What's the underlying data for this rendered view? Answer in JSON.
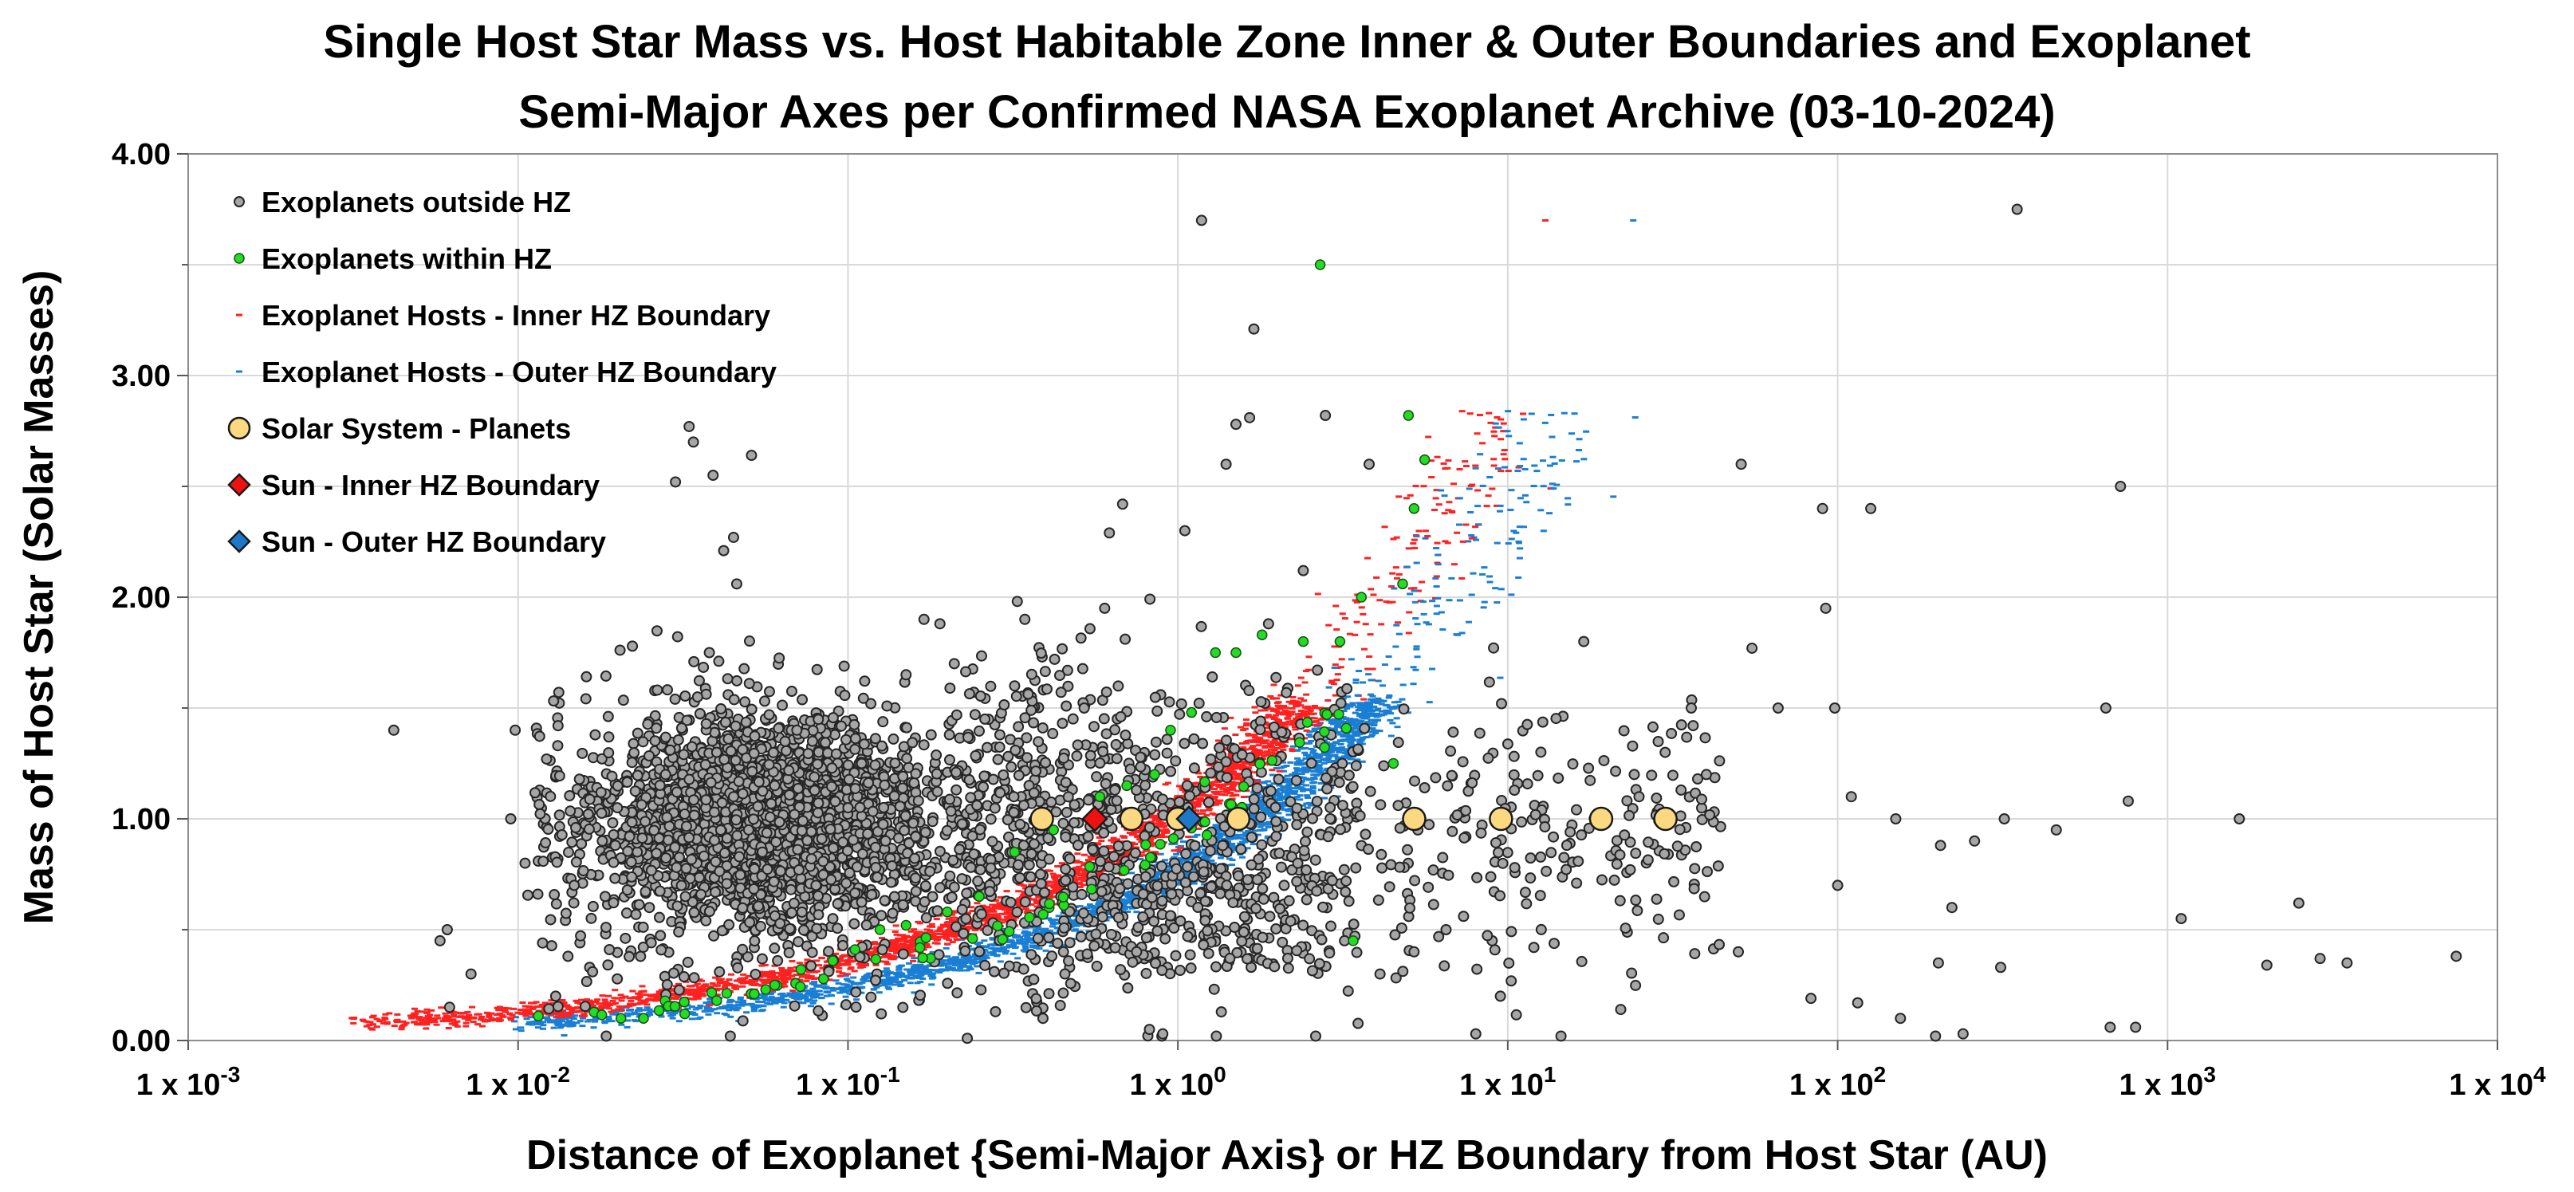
{
  "chart_data": {
    "type": "scatter",
    "title_line1": "Single Host Star Mass vs. Host Habitable Zone Inner & Outer Boundaries and Exoplanet",
    "title_line2": "Semi-Major Axes per Confirmed NASA Exoplanet Archive (03-10-2024)",
    "xlabel": "Distance of Exoplanet {Semi-Major Axis} or HZ Boundary from Host Star (AU)",
    "ylabel": "Mass of Host Star (Solar Masses)",
    "x_scale": "log",
    "xlim": [
      0.001,
      10000
    ],
    "ylim": [
      0,
      4
    ],
    "x_ticks": [
      {
        "value": 0.001,
        "base": "1 x 10",
        "exp": "-3"
      },
      {
        "value": 0.01,
        "base": "1 x 10",
        "exp": "-2"
      },
      {
        "value": 0.1,
        "base": "1 x 10",
        "exp": "-1"
      },
      {
        "value": 1,
        "base": "1 x 10",
        "exp": "0"
      },
      {
        "value": 10,
        "base": "1 x 10",
        "exp": "1"
      },
      {
        "value": 100,
        "base": "1 x 10",
        "exp": "2"
      },
      {
        "value": 1000,
        "base": "1 x 10",
        "exp": "3"
      },
      {
        "value": 10000,
        "base": "1 x 10",
        "exp": "4"
      }
    ],
    "y_ticks": [
      {
        "value": 0,
        "label": "0.00"
      },
      {
        "value": 1,
        "label": "1.00"
      },
      {
        "value": 2,
        "label": "2.00"
      },
      {
        "value": 3,
        "label": "3.00"
      },
      {
        "value": 4,
        "label": "4.00"
      }
    ],
    "legend_position": "top-left",
    "colors": {
      "outside_fill": "#a6a6a6",
      "outside_stroke": "#262626",
      "within_fill": "#22dd22",
      "inner_hz": "#ff2020",
      "outer_hz": "#1a7fd4",
      "solar_fill": "#fcd980",
      "sun_inner": "#ee1111",
      "sun_outer": "#1e78c8",
      "grid": "#d9d9d9"
    },
    "legend": [
      {
        "key": "outside",
        "label": "Exoplanets outside HZ"
      },
      {
        "key": "within",
        "label": "Exoplanets within HZ"
      },
      {
        "key": "inner",
        "label": "Exoplanet Hosts - Inner HZ Boundary"
      },
      {
        "key": "outer",
        "label": "Exoplanet Hosts - Outer HZ Boundary"
      },
      {
        "key": "solar",
        "label": "Solar System - Planets"
      },
      {
        "key": "sun_inner",
        "label": "Sun - Inner HZ Boundary"
      },
      {
        "key": "sun_outer",
        "label": "Sun - Outer HZ Boundary"
      }
    ],
    "series": [
      {
        "name": "Solar System - Planets",
        "key": "solar",
        "points": [
          [
            0.387,
            1.0
          ],
          [
            0.723,
            1.0
          ],
          [
            1.0,
            1.0
          ],
          [
            1.524,
            1.0
          ],
          [
            5.203,
            1.0
          ],
          [
            9.537,
            1.0
          ],
          [
            19.19,
            1.0
          ],
          [
            30.07,
            1.0
          ]
        ]
      },
      {
        "name": "Sun - Inner HZ Boundary",
        "key": "sun_inner",
        "points": [
          [
            0.56,
            1.0
          ]
        ]
      },
      {
        "name": "Sun - Outer HZ Boundary",
        "key": "sun_outer",
        "points": [
          [
            1.08,
            1.0
          ]
        ]
      },
      {
        "name": "Exoplanets outside HZ (representative)",
        "key": "outside",
        "points": [
          [
            0.0042,
            1.4
          ],
          [
            0.0098,
            1.4
          ],
          [
            0.0061,
            0.5
          ],
          [
            0.0058,
            0.45
          ],
          [
            0.0062,
            0.15
          ],
          [
            0.0072,
            0.3
          ],
          [
            0.0095,
            1.0
          ],
          [
            0.0105,
            0.8
          ],
          [
            0.0122,
            1.27
          ],
          [
            0.013,
            0.2
          ],
          [
            0.0148,
            0.7
          ],
          [
            0.018,
            0.9
          ],
          [
            0.02,
            1.05
          ],
          [
            0.025,
            0.6
          ],
          [
            0.028,
            1.2
          ],
          [
            0.03,
            2.52
          ],
          [
            0.033,
            2.77
          ],
          [
            0.034,
            2.7
          ],
          [
            0.039,
            2.55
          ],
          [
            0.045,
            2.27
          ],
          [
            0.042,
            2.21
          ],
          [
            0.051,
            2.64
          ],
          [
            0.046,
            2.06
          ],
          [
            0.038,
            1.75
          ],
          [
            0.035,
            1.55
          ],
          [
            0.04,
            1.3
          ],
          [
            0.045,
            1.1
          ],
          [
            0.05,
            0.95
          ],
          [
            0.055,
            0.85
          ],
          [
            0.06,
            1.15
          ],
          [
            0.07,
            1.4
          ],
          [
            0.08,
            0.7
          ],
          [
            0.09,
            0.55
          ],
          [
            0.1,
            1.05
          ],
          [
            0.11,
            1.25
          ],
          [
            0.13,
            0.9
          ],
          [
            0.15,
            1.65
          ],
          [
            0.17,
            1.9
          ],
          [
            0.19,
            1.88
          ],
          [
            0.21,
            1.7
          ],
          [
            0.23,
            0.01
          ],
          [
            0.26,
            1.45
          ],
          [
            0.28,
            0.13
          ],
          [
            0.32,
            1.6
          ],
          [
            0.39,
            0.1
          ],
          [
            0.45,
            0.4
          ],
          [
            0.52,
            1.5
          ],
          [
            0.6,
            1.95
          ],
          [
            0.62,
            2.29
          ],
          [
            0.68,
            2.42
          ],
          [
            0.75,
            0.4
          ],
          [
            0.82,
            0.05
          ],
          [
            0.9,
            0.03
          ],
          [
            1.05,
            2.3
          ],
          [
            1.18,
            3.7
          ],
          [
            1.4,
            2.6
          ],
          [
            1.65,
            2.81
          ],
          [
            1.7,
            3.21
          ],
          [
            1.5,
            2.78
          ],
          [
            1.9,
            0.56
          ],
          [
            2.1,
            0.7
          ],
          [
            2.4,
            2.12
          ],
          [
            2.8,
            2.82
          ],
          [
            3.2,
            0.45
          ],
          [
            3.8,
            2.6
          ],
          [
            4.1,
            0.3
          ],
          [
            5.2,
            0.4
          ],
          [
            6.5,
            0.5
          ],
          [
            8.0,
            0.03
          ],
          [
            9.5,
            0.2
          ],
          [
            10.5,
            0.78
          ],
          [
            12.0,
            0.42
          ],
          [
            14.5,
            0.02
          ],
          [
            17.0,
            1.8
          ],
          [
            22.0,
            0.14
          ],
          [
            25.0,
            1.1
          ],
          [
            30.0,
            1.3
          ],
          [
            36.0,
            1.5
          ],
          [
            40.0,
            1.2
          ],
          [
            51.0,
            2.6
          ],
          [
            50.0,
            0.4
          ],
          [
            55.0,
            1.77
          ],
          [
            66.0,
            1.5
          ],
          [
            83.0,
            0.19
          ],
          [
            90.0,
            2.4
          ],
          [
            92.0,
            1.95
          ],
          [
            98.0,
            1.5
          ],
          [
            100.0,
            0.7
          ],
          [
            110.0,
            1.1
          ],
          [
            115.0,
            0.17
          ],
          [
            126.0,
            2.4
          ],
          [
            150.0,
            1.0
          ],
          [
            155.0,
            0.1
          ],
          [
            198.0,
            0.02
          ],
          [
            202.0,
            0.35
          ],
          [
            205.0,
            0.88
          ],
          [
            222.0,
            0.6
          ],
          [
            240.0,
            0.03
          ],
          [
            260.0,
            0.9
          ],
          [
            312.0,
            0.33
          ],
          [
            320.0,
            1.0
          ],
          [
            350.0,
            3.75
          ],
          [
            460.0,
            0.95
          ],
          [
            650.0,
            1.5
          ],
          [
            670.0,
            0.06
          ],
          [
            720.0,
            2.5
          ],
          [
            760.0,
            1.08
          ],
          [
            800.0,
            0.06
          ],
          [
            1100.0,
            0.55
          ],
          [
            1650.0,
            1.0
          ],
          [
            2000.0,
            0.34
          ],
          [
            2500.0,
            0.62
          ],
          [
            2900.0,
            0.37
          ],
          [
            3500.0,
            0.35
          ],
          [
            7500.0,
            0.38
          ]
        ]
      },
      {
        "name": "Exoplanets within HZ (representative)",
        "key": "within",
        "points": [
          [
            0.0205,
            0.1
          ],
          [
            0.024,
            0.1
          ],
          [
            0.032,
            0.12
          ],
          [
            0.04,
            0.18
          ],
          [
            0.052,
            0.21
          ],
          [
            0.06,
            0.25
          ],
          [
            0.072,
            0.32
          ],
          [
            0.09,
            0.36
          ],
          [
            0.105,
            0.41
          ],
          [
            0.125,
            0.5
          ],
          [
            0.15,
            0.52
          ],
          [
            0.2,
            0.58
          ],
          [
            0.25,
            0.65
          ],
          [
            0.32,
            0.85
          ],
          [
            0.42,
            0.95
          ],
          [
            0.58,
            1.1
          ],
          [
            0.7,
            1.15
          ],
          [
            0.85,
            1.2
          ],
          [
            0.95,
            1.4
          ],
          [
            1.1,
            1.48
          ],
          [
            1.3,
            1.75
          ],
          [
            1.5,
            1.75
          ],
          [
            1.8,
            1.83
          ],
          [
            2.4,
            1.8
          ],
          [
            2.7,
            3.5
          ],
          [
            3.1,
            1.8
          ],
          [
            3.4,
            0.45
          ],
          [
            3.6,
            2.0
          ],
          [
            4.5,
            1.25
          ],
          [
            5.0,
            2.82
          ],
          [
            5.2,
            2.4
          ],
          [
            5.6,
            2.62
          ],
          [
            4.8,
            2.06
          ]
        ]
      }
    ]
  }
}
